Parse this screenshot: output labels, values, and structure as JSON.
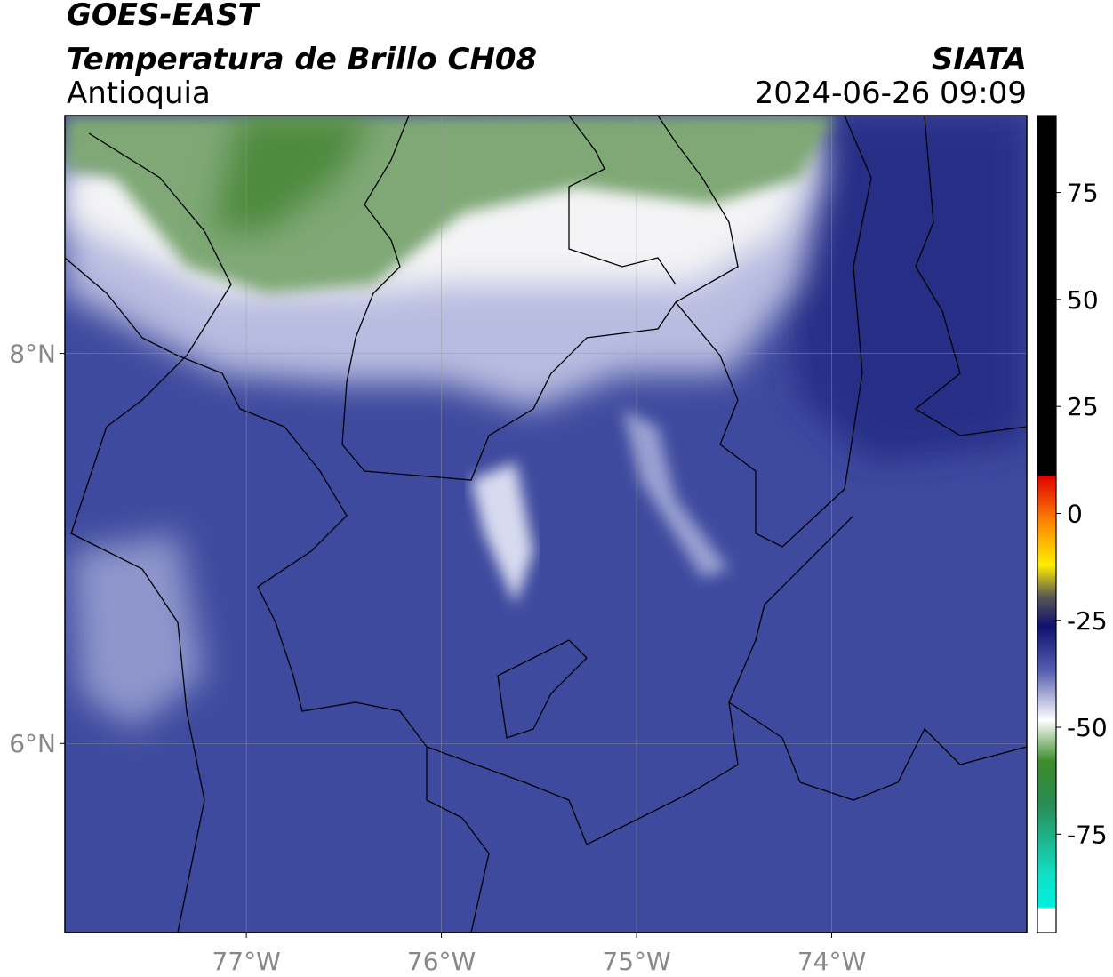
{
  "header": {
    "title": "GOES-EAST",
    "subtitle": "Temperatura de Brillo CH08",
    "region": "Antioquia",
    "source": "SIATA",
    "timestamp": "2024-06-26 09:09"
  },
  "map": {
    "xlim": [
      -77.93,
      -73.0
    ],
    "ylim": [
      5.03,
      9.22
    ],
    "xticks": [
      {
        "value": -77,
        "label": "77°W"
      },
      {
        "value": -76,
        "label": "76°W"
      },
      {
        "value": -75,
        "label": "75°W"
      },
      {
        "value": -74,
        "label": "74°W"
      }
    ],
    "yticks": [
      {
        "value": 8,
        "label": "8°N"
      },
      {
        "value": 6,
        "label": "6°N"
      }
    ],
    "grid": true
  },
  "colorbar": {
    "lim": [
      -98,
      93
    ],
    "ticks": [
      75,
      50,
      25,
      0,
      -25,
      -50,
      -75
    ]
  }
}
